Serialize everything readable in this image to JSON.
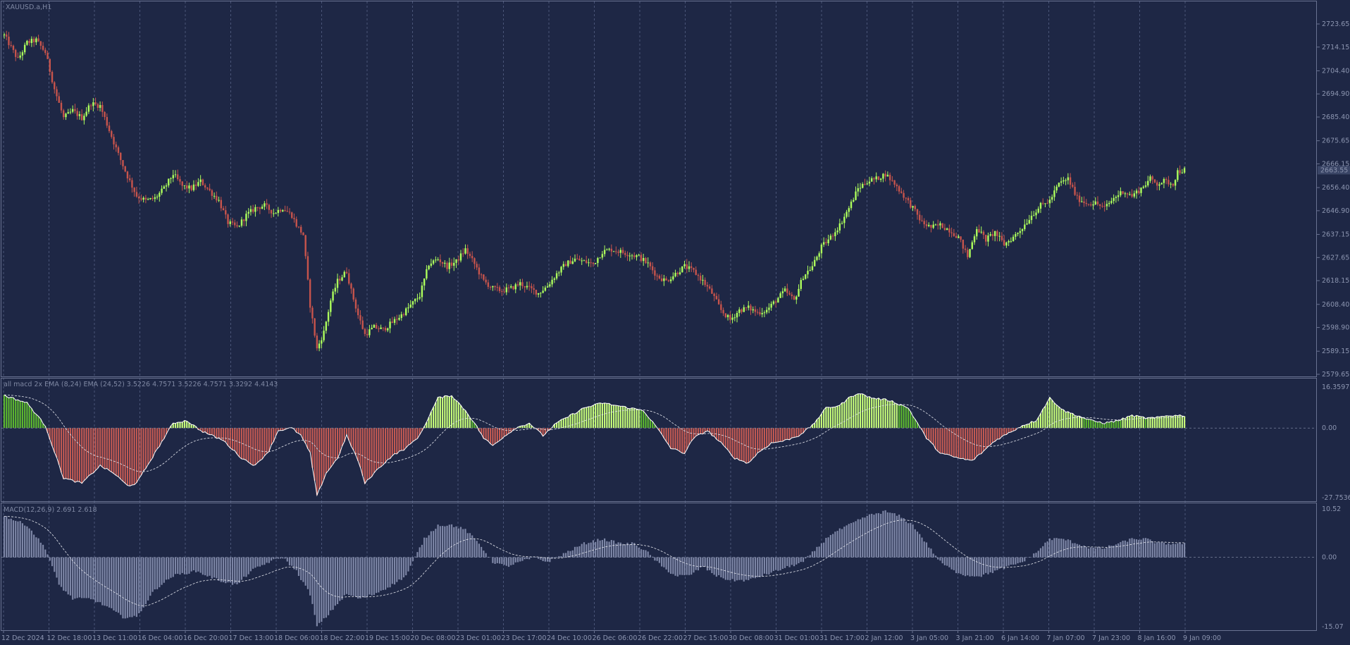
{
  "window": {
    "symbol_title": "XAUUSD.a,H1"
  },
  "panes": {
    "price": {
      "price_axis_labels": [
        "2723.65",
        "2714.15",
        "2704.40",
        "2694.90",
        "2685.40",
        "2675.65",
        "2666.15",
        "2656.40",
        "2646.90",
        "2637.15",
        "2627.65",
        "2618.15",
        "2608.40",
        "2598.90",
        "2589.15",
        "2579.65"
      ],
      "current_price_label": "2663.55"
    },
    "osc1": {
      "indicator_label": "all macd 2x EMA (8,24) EMA (24,52)  3.5226 4.7571 3.5226 4.7571 3.3292 4.4143",
      "axis_labels": [
        "16.3597",
        "0.00",
        "-27.7536"
      ]
    },
    "osc2": {
      "indicator_label": "MACD(12,26,9) 2.691 2.618",
      "axis_labels": [
        "10.52",
        "0.00",
        "-15.07"
      ]
    }
  },
  "time_axis_labels": [
    "12 Dec 2024",
    "12 Dec 18:00",
    "13 Dec 11:00",
    "16 Dec 04:00",
    "16 Dec 20:00",
    "17 Dec 13:00",
    "18 Dec 06:00",
    "18 Dec 22:00",
    "19 Dec 15:00",
    "20 Dec 08:00",
    "23 Dec 01:00",
    "23 Dec 17:00",
    "24 Dec 10:00",
    "26 Dec 06:00",
    "26 Dec 22:00",
    "27 Dec 15:00",
    "30 Dec 08:00",
    "31 Dec 01:00",
    "31 Dec 17:00",
    "2 Jan 12:00",
    "3 Jan 05:00",
    "3 Jan 21:00",
    "6 Jan 14:00",
    "7 Jan 07:00",
    "7 Jan 23:00",
    "8 Jan 16:00",
    "9 Jan 09:00"
  ],
  "colors": {
    "background": "#1e2745",
    "bull_candle": "#adff5c",
    "bear_candle": "#c7544c",
    "osc_positive": "#9de65b",
    "osc_negative": "#c45a52",
    "macd_histogram": "#7d86a6",
    "grid": "#4a5578"
  },
  "chart_data": [
    {
      "type": "candlestick",
      "series_name": "XAUUSD.a,H1",
      "ylim": [
        2579.65,
        2723.65
      ],
      "y_ticks": [
        2723.65,
        2714.15,
        2704.4,
        2694.9,
        2685.4,
        2675.65,
        2666.15,
        2656.4,
        2646.9,
        2637.15,
        2627.65,
        2618.15,
        2608.4,
        2598.9,
        2589.15,
        2579.65
      ],
      "last_price": 2663.55,
      "close_path": [
        [
          0,
          2719
        ],
        [
          6,
          2709
        ],
        [
          10,
          2716
        ],
        [
          14,
          2717
        ],
        [
          18,
          2712
        ],
        [
          22,
          2697
        ],
        [
          26,
          2685
        ],
        [
          30,
          2688
        ],
        [
          34,
          2685
        ],
        [
          38,
          2691
        ],
        [
          42,
          2690
        ],
        [
          46,
          2680
        ],
        [
          50,
          2670
        ],
        [
          54,
          2661
        ],
        [
          58,
          2653
        ],
        [
          62,
          2651
        ],
        [
          66,
          2652
        ],
        [
          70,
          2656
        ],
        [
          74,
          2662
        ],
        [
          78,
          2657
        ],
        [
          82,
          2656
        ],
        [
          86,
          2659
        ],
        [
          90,
          2655
        ],
        [
          94,
          2651
        ],
        [
          98,
          2642
        ],
        [
          102,
          2640
        ],
        [
          106,
          2645
        ],
        [
          110,
          2648
        ],
        [
          114,
          2649
        ],
        [
          118,
          2646
        ],
        [
          122,
          2648
        ],
        [
          126,
          2645
        ],
        [
          128,
          2641
        ],
        [
          131,
          2637
        ],
        [
          134,
          2608
        ],
        [
          137,
          2590
        ],
        [
          140,
          2597
        ],
        [
          143,
          2610
        ],
        [
          146,
          2618
        ],
        [
          150,
          2622
        ],
        [
          152,
          2614
        ],
        [
          155,
          2604
        ],
        [
          158,
          2596
        ],
        [
          162,
          2599
        ],
        [
          166,
          2598
        ],
        [
          170,
          2601
        ],
        [
          174,
          2604
        ],
        [
          178,
          2608
        ],
        [
          182,
          2612
        ],
        [
          186,
          2625
        ],
        [
          190,
          2627
        ],
        [
          194,
          2624
        ],
        [
          198,
          2626
        ],
        [
          202,
          2631
        ],
        [
          206,
          2625
        ],
        [
          210,
          2618
        ],
        [
          214,
          2615
        ],
        [
          218,
          2614
        ],
        [
          222,
          2615
        ],
        [
          226,
          2617
        ],
        [
          230,
          2615
        ],
        [
          234,
          2613
        ],
        [
          238,
          2616
        ],
        [
          242,
          2621
        ],
        [
          246,
          2625
        ],
        [
          250,
          2627
        ],
        [
          254,
          2626
        ],
        [
          258,
          2625
        ],
        [
          262,
          2630
        ],
        [
          266,
          2631
        ],
        [
          270,
          2630
        ],
        [
          274,
          2629
        ],
        [
          278,
          2628
        ],
        [
          282,
          2625
        ],
        [
          286,
          2620
        ],
        [
          290,
          2618
        ],
        [
          294,
          2621
        ],
        [
          298,
          2624
        ],
        [
          302,
          2622
        ],
        [
          306,
          2618
        ],
        [
          310,
          2613
        ],
        [
          314,
          2606
        ],
        [
          318,
          2602
        ],
        [
          322,
          2606
        ],
        [
          326,
          2607
        ],
        [
          330,
          2605
        ],
        [
          334,
          2606
        ],
        [
          338,
          2610
        ],
        [
          342,
          2614
        ],
        [
          346,
          2610
        ],
        [
          350,
          2620
        ],
        [
          354,
          2624
        ],
        [
          358,
          2632
        ],
        [
          362,
          2636
        ],
        [
          366,
          2641
        ],
        [
          370,
          2648
        ],
        [
          374,
          2656
        ],
        [
          378,
          2659
        ],
        [
          382,
          2660
        ],
        [
          386,
          2662
        ],
        [
          390,
          2658
        ],
        [
          394,
          2653
        ],
        [
          398,
          2648
        ],
        [
          402,
          2642
        ],
        [
          406,
          2640
        ],
        [
          410,
          2641
        ],
        [
          414,
          2639
        ],
        [
          418,
          2636
        ],
        [
          422,
          2628
        ],
        [
          426,
          2640
        ],
        [
          430,
          2635
        ],
        [
          434,
          2638
        ],
        [
          438,
          2633
        ],
        [
          442,
          2636
        ],
        [
          446,
          2640
        ],
        [
          450,
          2645
        ],
        [
          454,
          2649
        ],
        [
          458,
          2651
        ],
        [
          462,
          2658
        ],
        [
          466,
          2660
        ],
        [
          470,
          2652
        ],
        [
          474,
          2650
        ],
        [
          478,
          2650
        ],
        [
          482,
          2648
        ],
        [
          486,
          2652
        ],
        [
          490,
          2655
        ],
        [
          494,
          2653
        ],
        [
          498,
          2656
        ],
        [
          502,
          2660
        ],
        [
          505,
          2658
        ],
        [
          508,
          2659
        ],
        [
          512,
          2658
        ],
        [
          514,
          2663
        ],
        [
          517,
          2663.55
        ]
      ],
      "approx_candle_count": 518
    },
    {
      "type": "histogram",
      "name": "all macd 2x EMA (8,24) EMA (24,52)",
      "values_printed": [
        3.5226,
        4.7571,
        3.5226,
        4.7571,
        3.3292,
        4.4143
      ],
      "ylim": [
        -27.7536,
        16.3597
      ],
      "path": [
        [
          0,
          13
        ],
        [
          10,
          10
        ],
        [
          18,
          1
        ],
        [
          26,
          -20
        ],
        [
          34,
          -22
        ],
        [
          42,
          -15
        ],
        [
          48,
          -18
        ],
        [
          54,
          -23
        ],
        [
          58,
          -22
        ],
        [
          66,
          -10
        ],
        [
          74,
          2
        ],
        [
          80,
          3
        ],
        [
          86,
          -1
        ],
        [
          96,
          -5
        ],
        [
          104,
          -12
        ],
        [
          110,
          -15
        ],
        [
          116,
          -9
        ],
        [
          120,
          -1
        ],
        [
          126,
          0
        ],
        [
          130,
          -3
        ],
        [
          134,
          -10
        ],
        [
          137,
          -27
        ],
        [
          141,
          -18
        ],
        [
          146,
          -12
        ],
        [
          150,
          -3
        ],
        [
          155,
          -13
        ],
        [
          158,
          -22
        ],
        [
          164,
          -16
        ],
        [
          170,
          -11
        ],
        [
          176,
          -8
        ],
        [
          182,
          -3
        ],
        [
          190,
          12
        ],
        [
          196,
          13
        ],
        [
          202,
          7
        ],
        [
          206,
          2
        ],
        [
          210,
          -4
        ],
        [
          214,
          -7
        ],
        [
          218,
          -4
        ],
        [
          224,
          0
        ],
        [
          230,
          2
        ],
        [
          236,
          -3
        ],
        [
          242,
          2
        ],
        [
          248,
          5
        ],
        [
          254,
          8
        ],
        [
          262,
          10
        ],
        [
          268,
          9
        ],
        [
          274,
          8
        ],
        [
          280,
          7
        ],
        [
          286,
          0
        ],
        [
          292,
          -8
        ],
        [
          298,
          -10
        ],
        [
          302,
          -4
        ],
        [
          308,
          -1
        ],
        [
          314,
          -6
        ],
        [
          320,
          -12
        ],
        [
          326,
          -14
        ],
        [
          330,
          -10
        ],
        [
          336,
          -6
        ],
        [
          342,
          -5
        ],
        [
          348,
          -3
        ],
        [
          354,
          1
        ],
        [
          360,
          8
        ],
        [
          366,
          9
        ],
        [
          370,
          12
        ],
        [
          374,
          14
        ],
        [
          380,
          12
        ],
        [
          388,
          11
        ],
        [
          396,
          8
        ],
        [
          404,
          -4
        ],
        [
          410,
          -10
        ],
        [
          418,
          -12
        ],
        [
          424,
          -13
        ],
        [
          428,
          -10
        ],
        [
          434,
          -5
        ],
        [
          440,
          -2
        ],
        [
          446,
          1
        ],
        [
          452,
          3
        ],
        [
          458,
          12
        ],
        [
          464,
          7
        ],
        [
          470,
          5
        ],
        [
          476,
          3
        ],
        [
          482,
          2
        ],
        [
          488,
          3
        ],
        [
          494,
          5
        ],
        [
          500,
          4
        ],
        [
          504,
          4
        ],
        [
          510,
          5
        ],
        [
          517,
          5
        ]
      ]
    },
    {
      "type": "histogram",
      "name": "MACD(12,26,9)",
      "values_printed": [
        2.691,
        2.618
      ],
      "ylim": [
        -15.07,
        10.52
      ],
      "path": [
        [
          0,
          9
        ],
        [
          10,
          7
        ],
        [
          18,
          2
        ],
        [
          24,
          -6
        ],
        [
          30,
          -9
        ],
        [
          38,
          -9
        ],
        [
          46,
          -11
        ],
        [
          52,
          -13
        ],
        [
          58,
          -13
        ],
        [
          66,
          -7
        ],
        [
          74,
          -4
        ],
        [
          84,
          -3
        ],
        [
          94,
          -5
        ],
        [
          102,
          -6
        ],
        [
          108,
          -3
        ],
        [
          116,
          -1
        ],
        [
          122,
          0
        ],
        [
          128,
          -3
        ],
        [
          134,
          -8
        ],
        [
          137,
          -15
        ],
        [
          141,
          -13
        ],
        [
          146,
          -10
        ],
        [
          150,
          -8
        ],
        [
          156,
          -9
        ],
        [
          162,
          -8
        ],
        [
          170,
          -6
        ],
        [
          176,
          -4
        ],
        [
          184,
          4
        ],
        [
          190,
          7
        ],
        [
          196,
          7
        ],
        [
          202,
          6
        ],
        [
          208,
          3
        ],
        [
          214,
          -1
        ],
        [
          220,
          -2
        ],
        [
          226,
          -1
        ],
        [
          232,
          0
        ],
        [
          238,
          -1
        ],
        [
          246,
          1
        ],
        [
          254,
          3
        ],
        [
          262,
          4
        ],
        [
          270,
          3
        ],
        [
          276,
          3
        ],
        [
          282,
          1
        ],
        [
          288,
          -2
        ],
        [
          294,
          -4
        ],
        [
          300,
          -4
        ],
        [
          306,
          -2
        ],
        [
          312,
          -4
        ],
        [
          318,
          -5
        ],
        [
          326,
          -5
        ],
        [
          332,
          -4
        ],
        [
          338,
          -3
        ],
        [
          344,
          -2
        ],
        [
          350,
          -1
        ],
        [
          356,
          2
        ],
        [
          362,
          5
        ],
        [
          370,
          7
        ],
        [
          378,
          9
        ],
        [
          386,
          10
        ],
        [
          392,
          9
        ],
        [
          398,
          7
        ],
        [
          404,
          3
        ],
        [
          410,
          -1
        ],
        [
          416,
          -3
        ],
        [
          422,
          -4
        ],
        [
          428,
          -4
        ],
        [
          434,
          -3
        ],
        [
          440,
          -2
        ],
        [
          446,
          -1
        ],
        [
          452,
          1
        ],
        [
          458,
          4
        ],
        [
          464,
          4
        ],
        [
          470,
          3
        ],
        [
          476,
          2
        ],
        [
          482,
          2
        ],
        [
          488,
          3
        ],
        [
          494,
          4
        ],
        [
          500,
          4
        ],
        [
          506,
          3
        ],
        [
          512,
          3
        ],
        [
          517,
          3
        ]
      ]
    }
  ]
}
